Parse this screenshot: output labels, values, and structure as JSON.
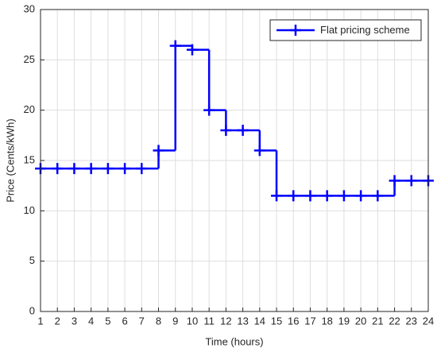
{
  "chart_data": {
    "type": "line",
    "drawstyle": "steps-post",
    "marker": "+",
    "x_label": "Time (hours)",
    "y_label": "Price (Cents/kWh)",
    "x": [
      1,
      2,
      3,
      4,
      5,
      6,
      7,
      8,
      9,
      10,
      11,
      12,
      13,
      14,
      15,
      16,
      17,
      18,
      19,
      20,
      21,
      22,
      23,
      24
    ],
    "series": [
      {
        "name": "Flat pricing scheme",
        "color": "#0000ff",
        "values": [
          14.2,
          14.2,
          14.2,
          14.2,
          14.2,
          14.2,
          14.2,
          16,
          26.4,
          26,
          20,
          18,
          18,
          16,
          11.5,
          11.5,
          11.5,
          11.5,
          11.5,
          11.5,
          11.5,
          13,
          13,
          13
        ]
      }
    ],
    "xlim": [
      1,
      24
    ],
    "xticks": [
      1,
      2,
      3,
      4,
      5,
      6,
      7,
      8,
      9,
      10,
      11,
      12,
      13,
      14,
      15,
      16,
      17,
      18,
      19,
      20,
      21,
      22,
      23,
      24
    ],
    "ylim": [
      0,
      30
    ],
    "yticks": [
      0,
      5,
      10,
      15,
      20,
      25,
      30
    ],
    "grid": true,
    "legend": "top-right"
  }
}
